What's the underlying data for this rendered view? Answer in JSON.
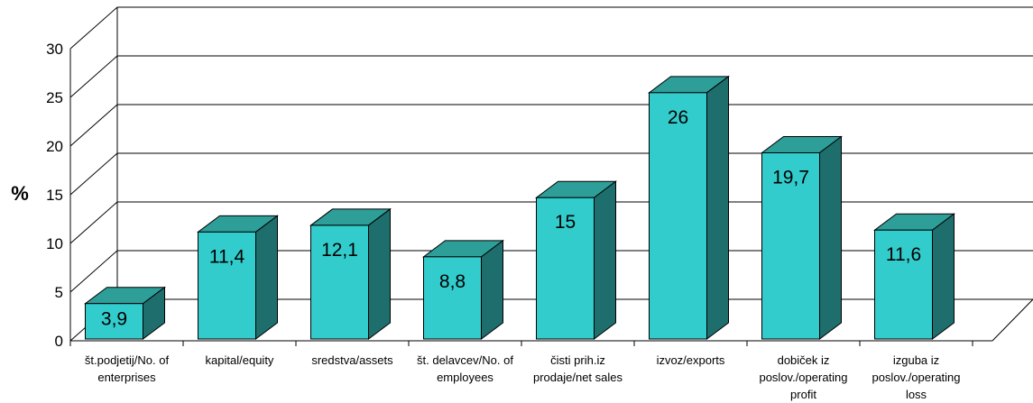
{
  "chart_data": {
    "type": "bar",
    "style": "3d-column",
    "ylabel": "%",
    "ylim": [
      0,
      30
    ],
    "yticks": [
      "0",
      "5",
      "10",
      "15",
      "20",
      "25",
      "30"
    ],
    "grid": true,
    "legend": "none",
    "categories": [
      [
        "št.podjetij/No. of",
        "enterprises"
      ],
      [
        "kapital/equity"
      ],
      [
        "sredstva/assets"
      ],
      [
        "št. delavcev/No. of",
        "employees"
      ],
      [
        "čisti prih.iz",
        "prodaje/net sales"
      ],
      [
        "izvoz/exports"
      ],
      [
        "dobiček iz",
        "poslov./operating",
        "profit"
      ],
      [
        "izguba iz",
        "poslov./operating",
        "loss"
      ]
    ],
    "values": [
      3.9,
      11.4,
      12.1,
      8.8,
      15,
      26,
      19.7,
      11.6
    ],
    "value_labels": [
      "3,9",
      "11,4",
      "12,1",
      "8,8",
      "15",
      "26",
      "19,7",
      "11,6"
    ],
    "colors": {
      "bar_front": "#33CCCC",
      "bar_top": "#2E9E99",
      "bar_side": "#1E6E6E",
      "outline": "#000000",
      "grid": "#000000"
    }
  }
}
